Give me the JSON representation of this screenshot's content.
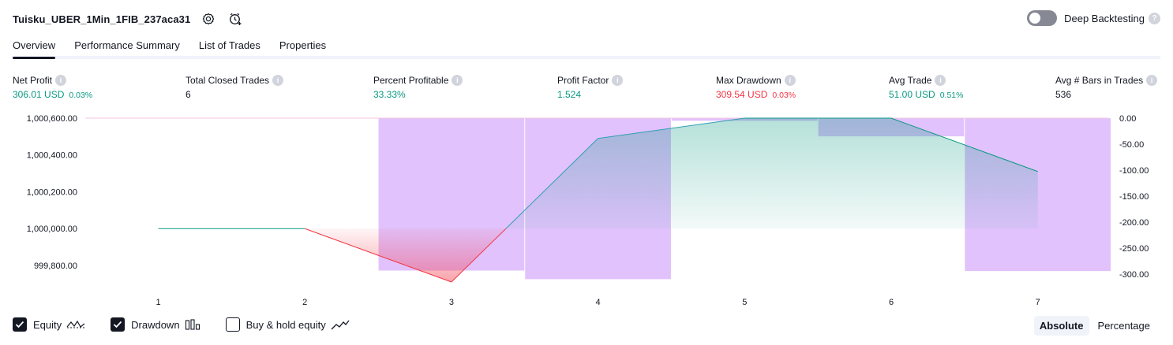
{
  "header": {
    "title": "Tuisku_UBER_1Min_1FIB_237aca31",
    "deep_backtesting_label": "Deep Backtesting",
    "deep_backtesting_enabled": false
  },
  "tabs": [
    {
      "label": "Overview",
      "active": true
    },
    {
      "label": "Performance Summary",
      "active": false
    },
    {
      "label": "List of Trades",
      "active": false
    },
    {
      "label": "Properties",
      "active": false
    }
  ],
  "metrics": {
    "net_profit": {
      "label": "Net Profit",
      "value": "306.01 USD",
      "pct": "0.03%"
    },
    "total_closed_trades": {
      "label": "Total Closed Trades",
      "value": "6"
    },
    "percent_profitable": {
      "label": "Percent Profitable",
      "value": "33.33%"
    },
    "profit_factor": {
      "label": "Profit Factor",
      "value": "1.524"
    },
    "max_drawdown": {
      "label": "Max Drawdown",
      "value": "309.54 USD",
      "pct": "0.03%"
    },
    "avg_trade": {
      "label": "Avg Trade",
      "value": "51.00 USD",
      "pct": "0.51%"
    },
    "avg_bars": {
      "label": "Avg # Bars in Trades",
      "value": "536"
    }
  },
  "chart_data": {
    "type": "line",
    "x": [
      1,
      2,
      3,
      4,
      5,
      6,
      7
    ],
    "x_tick_labels": [
      "1",
      "2",
      "3",
      "4",
      "5",
      "6",
      "7"
    ],
    "left_axis": {
      "tick_labels": [
        "1,000,600.00",
        "1,000,400.00",
        "1,000,200.00",
        "1,000,000.00",
        "999,800.00"
      ],
      "tick_values": [
        1000600,
        1000400,
        1000200,
        1000000,
        999800
      ],
      "range": [
        999710,
        1000600
      ]
    },
    "right_axis": {
      "tick_labels": [
        "0.00",
        "-50.00",
        "-100.00",
        "-150.00",
        "-200.00",
        "-250.00",
        "-300.00"
      ],
      "tick_values": [
        0,
        -50,
        -100,
        -150,
        -200,
        -250,
        -300
      ],
      "range": [
        -315,
        0
      ]
    },
    "series": [
      {
        "name": "Equity",
        "values": [
          1000000,
          1000000,
          999710,
          1000490,
          1000600,
          1000600,
          1000310
        ]
      }
    ],
    "drawdown_bars": [
      {
        "trade": 3,
        "value": -293
      },
      {
        "trade": 4,
        "value": -309.54
      },
      {
        "trade": 5,
        "value": -5
      },
      {
        "trade": 6,
        "value": -35
      },
      {
        "trade": 7,
        "value": -294
      }
    ],
    "colors": {
      "equity_up": "#089981",
      "equity_down": "#f23645",
      "drawdown": "#e1c2fc",
      "equity_line": "#2f9fb4"
    },
    "grid": false
  },
  "legend": [
    {
      "label": "Equity",
      "checked": true,
      "icon": "equity-line-icon"
    },
    {
      "label": "Drawdown",
      "checked": true,
      "icon": "drawdown-bars-icon"
    },
    {
      "label": "Buy & hold equity",
      "checked": false,
      "icon": "buy-hold-line-icon"
    }
  ],
  "scale_toggle": {
    "absolute_label": "Absolute",
    "percentage_label": "Percentage",
    "selected": "Absolute"
  }
}
